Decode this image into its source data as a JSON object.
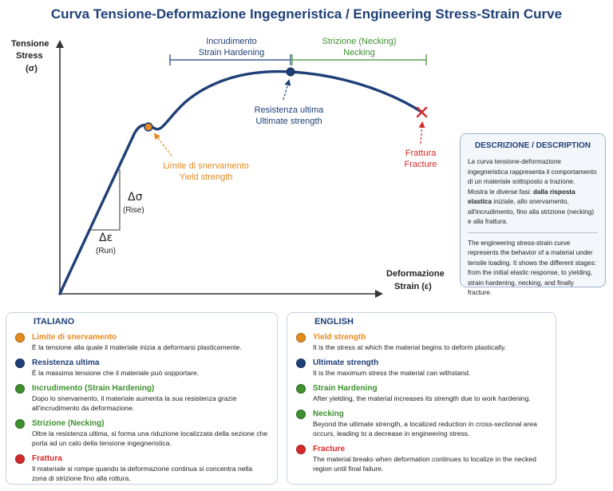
{
  "title": "Curva Tensione-Deformazione Ingegneristica / Engineering Stress-Strain Curve",
  "colors": {
    "navy": "#1f3f77",
    "orange": "#e58a1f",
    "green": "#3f8f2f",
    "red": "#d42a2a",
    "axis": "#333333"
  },
  "axes": {
    "y_label_it": "Tensione",
    "y_label_en": "Stress",
    "y_symbol": "(σ)",
    "x_label_it": "Deformazione",
    "x_label_en": "Strain (ε)"
  },
  "regions": {
    "hardening_it": "Incrudimento",
    "hardening_en": "Strain Hardening",
    "necking_it": "Strizione (Necking)",
    "necking_en": "Necking"
  },
  "annotations": {
    "yield_it": "Limite di snervamento",
    "yield_en": "Yield strength",
    "ultimate_it": "Resistenza ultima",
    "ultimate_en": "Ultimate strength",
    "fracture_it": "Frattura",
    "fracture_en": "Fracture",
    "rise_symbol": "Δσ",
    "rise_label": "(Rise)",
    "run_symbol": "Δε",
    "run_label": "(Run)"
  },
  "description": {
    "title": "DESCRIZIONE / DESCRIPTION",
    "it_line1": "La curva tensione-deformazione ingegneristica rappresenta il comportamento di un materiale sottoposto a trazione.",
    "it_line2_prefix": "Mostra le diverse fasi: ",
    "it_line2_bold": "dalla risposta elastica",
    "it_line2_rest": " iniziale, allo snervamento, all'incrudimento, fino alla strizione (necking) e alla frattura.",
    "en_text": "The engineering stress-strain curve represents the behavior of a material under tensile loading. It shows the different stages: from the initial elastic response, to yielding, strain hardening, necking, and finally fracture."
  },
  "legend_it": {
    "title": "ITALIANO",
    "items": [
      {
        "name": "Limite di snervamento",
        "text": "È la tensione alla quale il materiale inizia a deformarsi plasticamente.",
        "color": "#e58a1f"
      },
      {
        "name": "Resistenza ultima",
        "text": "È la massima tensione che il materiale può sopportare.",
        "color": "#1f3f77"
      },
      {
        "name": "Incrudimento (Strain Hardening)",
        "text": "Dopo lo snervamento, il materiale aumenta la sua resistenza grazie all'incrudimento da deformazione.",
        "color": "#3f8f2f"
      },
      {
        "name": "Strizione (Necking)",
        "text": "Oltre la resistenza ultima, si forma una riduzione localizzata della sezione che porta ad un calo della tensione ingegneristica.",
        "color": "#3f8f2f"
      },
      {
        "name": "Frattura",
        "text": "Il materiale si rompe quando la deformazione continua si concentra nella zona di strizione fino alla rottura.",
        "color": "#d42a2a"
      }
    ]
  },
  "legend_en": {
    "title": "ENGLISH",
    "items": [
      {
        "name": "Yield strength",
        "text": "It is the stress at which the material begins to deform plastically.",
        "color": "#e58a1f"
      },
      {
        "name": "Ultimate strength",
        "text": "It is the maximum stress the material can withstand.",
        "color": "#1f3f77"
      },
      {
        "name": "Strain Hardening",
        "text": "After yielding, the material increases its strength due to work hardening.",
        "color": "#3f8f2f"
      },
      {
        "name": "Necking",
        "text": "Beyond the ultimate strength, a localized reduction in cross-sectional area occurs, leading to a decrease in engineering stress.",
        "color": "#3f8f2f"
      },
      {
        "name": "Fracture",
        "text": "The material breaks when deformation continues to localize in the necked region until final failure.",
        "color": "#d42a2a"
      }
    ]
  }
}
